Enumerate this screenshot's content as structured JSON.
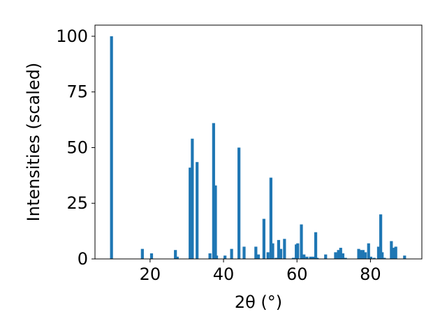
{
  "chart_data": {
    "type": "bar",
    "xlabel": "2θ (°)",
    "ylabel": "Intensities (scaled)",
    "xlim": [
      5,
      94
    ],
    "ylim": [
      0,
      105
    ],
    "xticks": [
      20,
      40,
      60,
      80
    ],
    "yticks": [
      0,
      25,
      50,
      75,
      100
    ],
    "bar_color": "#1f77b4",
    "bar_width": 0.8,
    "x": [
      9.5,
      17.9,
      20.4,
      26.9,
      27.4,
      30.9,
      31.5,
      32.8,
      36.3,
      37.3,
      37.8,
      38.1,
      40.4,
      42.2,
      44.2,
      45.6,
      48.8,
      49.5,
      51.0,
      52.1,
      52.9,
      53.4,
      54.3,
      55.0,
      55.6,
      56.6,
      59.0,
      59.8,
      60.2,
      61.2,
      61.9,
      62.7,
      63.7,
      64.4,
      65.1,
      65.5,
      67.8,
      70.5,
      71.3,
      71.9,
      72.5,
      73.2,
      76.8,
      77.3,
      78.0,
      78.6,
      79.5,
      80.1,
      81.0,
      82.2,
      82.8,
      83.2,
      83.8,
      85.7,
      86.2,
      86.9,
      89.3
    ],
    "values": [
      100,
      4.5,
      2.5,
      4,
      1,
      41,
      54,
      43.5,
      2.5,
      61,
      33,
      1.5,
      1.5,
      4.5,
      50,
      5.5,
      5.5,
      2,
      18,
      3,
      36.5,
      7,
      0.5,
      8.5,
      4.5,
      9,
      0.5,
      6.5,
      7,
      15.5,
      2,
      1,
      1,
      1,
      12,
      0.5,
      2,
      3,
      4,
      5,
      2.5,
      0.5,
      4.5,
      4,
      4,
      3,
      7,
      1,
      0.5,
      5.5,
      20,
      3,
      0.5,
      8,
      5,
      5.5,
      1.5
    ]
  }
}
